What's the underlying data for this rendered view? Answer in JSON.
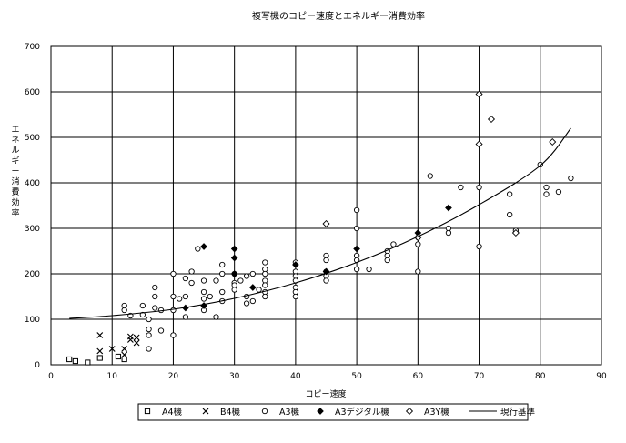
{
  "chart_data": {
    "type": "scatter",
    "title": "複写機のコピー速度とエネルギー消費効率",
    "xlabel": "コピー速度",
    "ylabel": "エネルギー消費効率",
    "xlim": [
      0,
      90
    ],
    "ylim": [
      0,
      700
    ],
    "x_ticks": [
      "0",
      "10",
      "20",
      "30",
      "40",
      "50",
      "60",
      "70",
      "80",
      "90"
    ],
    "y_ticks": [
      "0",
      "100",
      "200",
      "300",
      "400",
      "500",
      "600",
      "700"
    ],
    "grid": true,
    "legend_position": "bottom",
    "series": [
      {
        "name": "A4機",
        "marker": "square",
        "points": [
          [
            3,
            12
          ],
          [
            4,
            8
          ],
          [
            6,
            5
          ],
          [
            8,
            15
          ],
          [
            11,
            18
          ],
          [
            12,
            12
          ]
        ]
      },
      {
        "name": "B4機",
        "marker": "x",
        "points": [
          [
            8,
            30
          ],
          [
            8,
            65
          ],
          [
            10,
            35
          ],
          [
            12,
            35
          ],
          [
            12,
            22
          ],
          [
            13,
            62
          ],
          [
            13,
            55
          ],
          [
            14,
            48
          ],
          [
            14,
            60
          ]
        ]
      },
      {
        "name": "A3機",
        "marker": "circle",
        "points": [
          [
            12,
            120
          ],
          [
            12,
            130
          ],
          [
            13,
            108
          ],
          [
            15,
            130
          ],
          [
            15,
            110
          ],
          [
            16,
            100
          ],
          [
            16,
            78
          ],
          [
            16,
            65
          ],
          [
            16,
            35
          ],
          [
            17,
            170
          ],
          [
            17,
            150
          ],
          [
            17,
            125
          ],
          [
            18,
            120
          ],
          [
            18,
            75
          ],
          [
            20,
            200
          ],
          [
            20,
            150
          ],
          [
            20,
            120
          ],
          [
            20,
            65
          ],
          [
            21,
            145
          ],
          [
            22,
            190
          ],
          [
            22,
            150
          ],
          [
            22,
            105
          ],
          [
            23,
            205
          ],
          [
            23,
            180
          ],
          [
            24,
            255
          ],
          [
            25,
            185
          ],
          [
            25,
            160
          ],
          [
            25,
            145
          ],
          [
            25,
            120
          ],
          [
            26,
            150
          ],
          [
            27,
            185
          ],
          [
            27,
            105
          ],
          [
            28,
            220
          ],
          [
            28,
            200
          ],
          [
            28,
            160
          ],
          [
            28,
            140
          ],
          [
            30,
            200
          ],
          [
            30,
            180
          ],
          [
            30,
            175
          ],
          [
            30,
            165
          ],
          [
            31,
            185
          ],
          [
            32,
            195
          ],
          [
            32,
            150
          ],
          [
            32,
            135
          ],
          [
            33,
            200
          ],
          [
            33,
            140
          ],
          [
            34,
            165
          ],
          [
            35,
            225
          ],
          [
            35,
            210
          ],
          [
            35,
            200
          ],
          [
            35,
            185
          ],
          [
            35,
            175
          ],
          [
            35,
            160
          ],
          [
            35,
            150
          ],
          [
            40,
            225
          ],
          [
            40,
            205
          ],
          [
            40,
            195
          ],
          [
            40,
            185
          ],
          [
            40,
            170
          ],
          [
            40,
            160
          ],
          [
            40,
            150
          ],
          [
            45,
            240
          ],
          [
            45,
            230
          ],
          [
            45,
            205
          ],
          [
            45,
            195
          ],
          [
            45,
            185
          ],
          [
            50,
            340
          ],
          [
            50,
            300
          ],
          [
            50,
            240
          ],
          [
            50,
            230
          ],
          [
            50,
            210
          ],
          [
            52,
            210
          ],
          [
            55,
            250
          ],
          [
            55,
            240
          ],
          [
            55,
            230
          ],
          [
            56,
            265
          ],
          [
            60,
            280
          ],
          [
            60,
            265
          ],
          [
            60,
            205
          ],
          [
            62,
            415
          ],
          [
            65,
            300
          ],
          [
            65,
            290
          ],
          [
            67,
            390
          ],
          [
            70,
            390
          ],
          [
            70,
            260
          ],
          [
            75,
            375
          ],
          [
            75,
            330
          ],
          [
            76,
            295
          ],
          [
            80,
            440
          ],
          [
            81,
            390
          ],
          [
            81,
            375
          ],
          [
            83,
            380
          ],
          [
            85,
            410
          ]
        ]
      },
      {
        "name": "A3デジタル機",
        "marker": "filled-diamond",
        "points": [
          [
            22,
            125
          ],
          [
            25,
            260
          ],
          [
            25,
            130
          ],
          [
            30,
            255
          ],
          [
            30,
            235
          ],
          [
            30,
            200
          ],
          [
            33,
            170
          ],
          [
            40,
            220
          ],
          [
            45,
            205
          ],
          [
            50,
            255
          ],
          [
            60,
            290
          ],
          [
            65,
            345
          ]
        ]
      },
      {
        "name": "A3Y機",
        "marker": "diamond",
        "points": [
          [
            45,
            310
          ],
          [
            60,
            280
          ],
          [
            70,
            595
          ],
          [
            70,
            485
          ],
          [
            72,
            540
          ],
          [
            76,
            290
          ],
          [
            82,
            490
          ]
        ]
      },
      {
        "name": "現行基準",
        "marker": "line",
        "points": [
          [
            3,
            102
          ],
          [
            10,
            108
          ],
          [
            20,
            122
          ],
          [
            30,
            146
          ],
          [
            40,
            180
          ],
          [
            50,
            225
          ],
          [
            60,
            282
          ],
          [
            70,
            352
          ],
          [
            80,
            438
          ],
          [
            85,
            520
          ]
        ]
      }
    ]
  }
}
